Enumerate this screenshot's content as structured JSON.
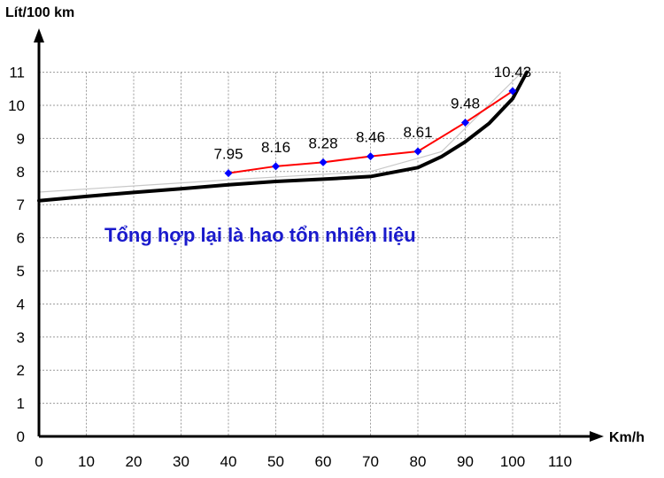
{
  "chart_data": {
    "type": "line",
    "x_ticks": [
      "0",
      "10",
      "20",
      "30",
      "40",
      "50",
      "60",
      "70",
      "80",
      "90",
      "100",
      "110"
    ],
    "y_ticks": [
      "0",
      "1",
      "2",
      "3",
      "4",
      "5",
      "6",
      "7",
      "8",
      "9",
      "10",
      "11"
    ],
    "xlim": [
      0,
      110
    ],
    "ylim": [
      0,
      11
    ],
    "xlabel": "Km/h",
    "ylabel": "Lít/100 km",
    "grid": true,
    "annotation": "Tổng hợp lại là hao tổn nhiên liệu",
    "series": [
      {
        "color": "#ff0000",
        "marker_color": "#0000ff",
        "x": [
          40,
          50,
          60,
          70,
          80,
          90,
          100
        ],
        "y": [
          7.95,
          8.16,
          8.28,
          8.46,
          8.61,
          9.48,
          10.43
        ],
        "labels": [
          "7.95",
          "8.16",
          "8.28",
          "8.46",
          "8.61",
          "9.48",
          "10.43"
        ]
      },
      {
        "color": "#000000",
        "x": [
          0,
          10,
          20,
          30,
          40,
          50,
          60,
          70,
          80,
          85,
          90,
          95,
          100,
          103
        ],
        "y": [
          7.12,
          7.25,
          7.37,
          7.48,
          7.6,
          7.7,
          7.77,
          7.85,
          8.12,
          8.45,
          8.9,
          9.45,
          10.2,
          11
        ]
      },
      {
        "color": "#c8c8c8",
        "x": [
          0,
          40,
          70,
          85,
          103
        ],
        "y": [
          7.38,
          7.75,
          8.0,
          8.6,
          11.15
        ]
      }
    ]
  },
  "colors": {
    "annotation": "#1a1acc"
  }
}
